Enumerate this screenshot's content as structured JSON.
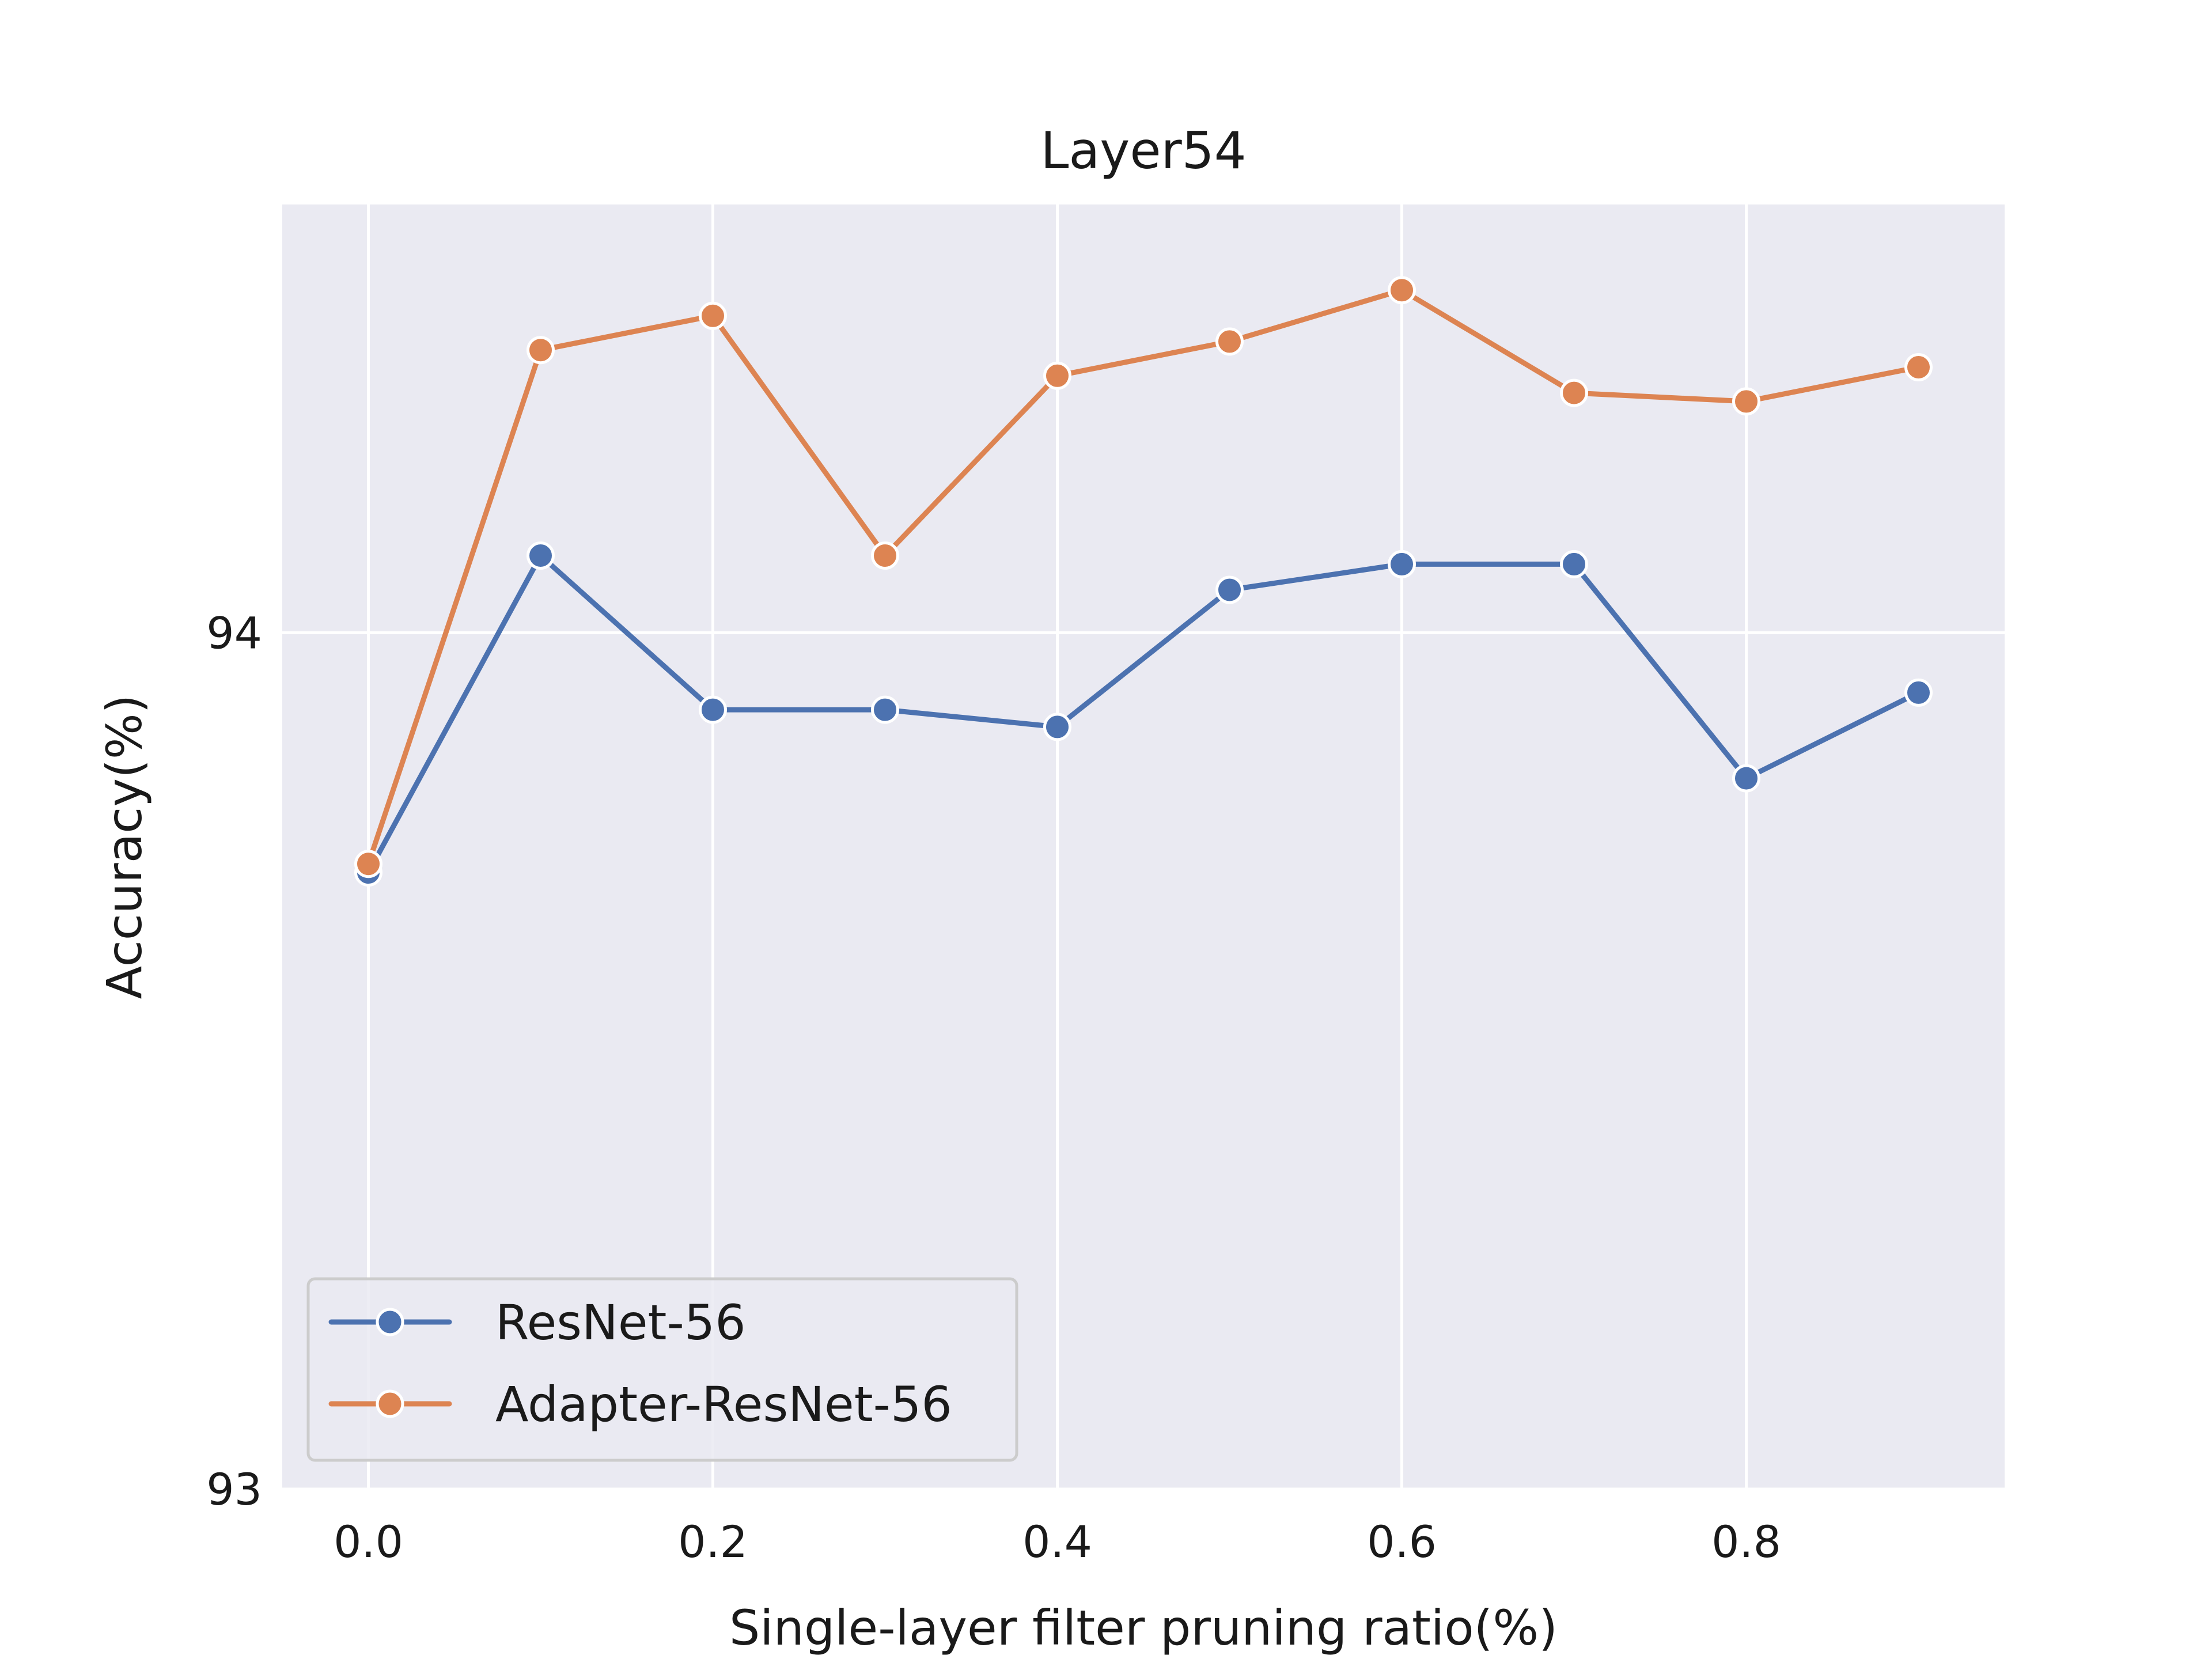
{
  "chart_data": {
    "type": "line",
    "title": "Layer54",
    "xlabel": "Single-layer filter pruning ratio(%)",
    "ylabel": "Accuracy(%)",
    "x": [
      0.0,
      0.1,
      0.2,
      0.3,
      0.4,
      0.5,
      0.6,
      0.7,
      0.8,
      0.9
    ],
    "xlim": [
      -0.05,
      0.95
    ],
    "ylim": [
      93.0,
      94.5
    ],
    "xticks": [
      0.0,
      0.2,
      0.4,
      0.6,
      0.8
    ],
    "xtick_labels": [
      "0.0",
      "0.2",
      "0.4",
      "0.6",
      "0.8"
    ],
    "yticks": [
      93,
      94
    ],
    "ytick_labels": [
      "93",
      "94"
    ],
    "grid": true,
    "legend_position": "lower-left",
    "series": [
      {
        "name": "ResNet-56",
        "color": "#4c72b0",
        "values": [
          93.72,
          94.09,
          93.91,
          93.91,
          93.89,
          94.05,
          94.08,
          94.08,
          93.83,
          93.93
        ]
      },
      {
        "name": "Adapter-ResNet-56",
        "color": "#dd8452",
        "values": [
          93.73,
          94.33,
          94.37,
          94.09,
          94.3,
          94.34,
          94.4,
          94.28,
          94.27,
          94.31
        ]
      }
    ]
  }
}
